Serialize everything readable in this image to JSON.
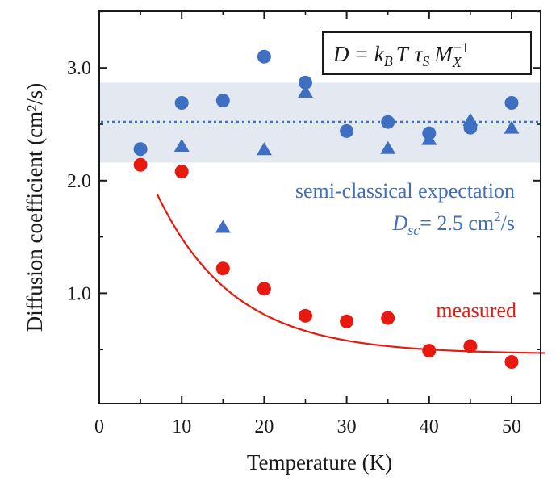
{
  "chart_data": {
    "type": "scatter",
    "xlabel": "Temperature (K)",
    "ylabel": "Diffusion coefficient (cm²/s)",
    "xlim": [
      0,
      55
    ],
    "ylim": [
      0,
      3.5
    ],
    "x_ticks": [
      0,
      10,
      20,
      30,
      40,
      50
    ],
    "y_ticks_labeled": [
      1.0,
      2.0,
      3.0
    ],
    "y_tick_labels": [
      "1.0",
      "2.0",
      "3.0"
    ],
    "x_tick_labels": [
      "0",
      "10",
      "20",
      "30",
      "40",
      "50"
    ],
    "series": [
      {
        "marker": "circle",
        "color": "#3f6fc1",
        "x": [
          5,
          10,
          15,
          20,
          25,
          30,
          35,
          40,
          45,
          50
        ],
        "y": [
          2.28,
          2.69,
          2.71,
          3.1,
          2.87,
          2.44,
          2.52,
          2.42,
          2.47,
          2.69
        ]
      },
      {
        "marker": "triangle",
        "color": "#3f6fc1",
        "x": [
          10,
          15,
          20,
          25,
          35,
          40,
          45,
          50
        ],
        "y": [
          2.3,
          1.58,
          2.27,
          2.78,
          2.28,
          2.36,
          2.53,
          2.46
        ]
      },
      {
        "name": "measured",
        "marker": "circle",
        "color": "#e8190f",
        "x": [
          5,
          10,
          15,
          20,
          25,
          30,
          35,
          40,
          45,
          50
        ],
        "y": [
          2.14,
          2.08,
          1.22,
          1.04,
          0.8,
          0.75,
          0.78,
          0.49,
          0.53,
          0.39
        ]
      }
    ],
    "fit_curve": {
      "color": "#e8190f",
      "model": "exponential_decay",
      "x_range": [
        7,
        54
      ],
      "y0": 0.46,
      "amplitude": 3.02,
      "decay_K": 9.3
    },
    "reference_line": {
      "y": 2.52,
      "style": "dotted",
      "color": "#3f6fc1",
      "band": [
        2.16,
        2.87
      ],
      "band_color": "#e3e8f1"
    },
    "annotations": {
      "equation": "D = k_B T τ_S M_X^−1",
      "expectation_line1": "semi-classical expectation",
      "expectation_D": "D",
      "expectation_sub": "sc",
      "expectation_value": "= 2.5 cm",
      "expectation_exp": "2",
      "expectation_unit": "/s",
      "measured_label": "measured"
    },
    "grid": false,
    "legend": "none"
  }
}
